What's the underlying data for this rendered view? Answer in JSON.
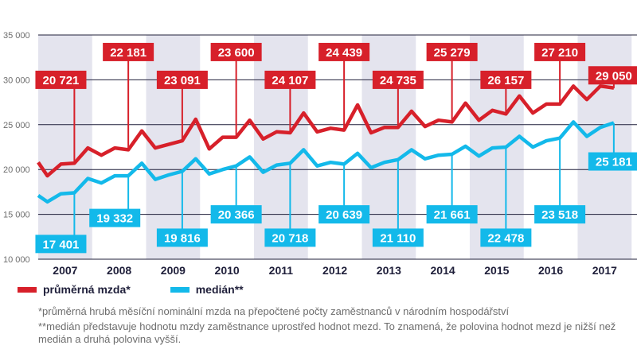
{
  "colors": {
    "avg": "#d7202a",
    "median": "#13b9ea",
    "band": "#e4e4ee",
    "grid": "#1f1f3a"
  },
  "chart_data": {
    "type": "line",
    "title": "",
    "xlabel": "",
    "ylabel": "",
    "ylim": [
      10000,
      35000
    ],
    "y_ticks": [
      10000,
      15000,
      20000,
      25000,
      30000,
      35000
    ],
    "y_tick_labels": [
      "10 000",
      "15 000",
      "20 000",
      "25 000",
      "30 000",
      "35 000"
    ],
    "years": [
      "2007",
      "2008",
      "2009",
      "2010",
      "2011",
      "2012",
      "2013",
      "2014",
      "2015",
      "2016",
      "2017"
    ],
    "x_range": [
      2006.7,
      2017.8
    ],
    "series": [
      {
        "name": "průměrná mzda*",
        "color_key": "avg",
        "points": [
          [
            2006.7,
            20800
          ],
          [
            2006.87,
            19300
          ],
          [
            2007.12,
            20600
          ],
          [
            2007.37,
            20700
          ],
          [
            2007.62,
            22400
          ],
          [
            2007.87,
            21600
          ],
          [
            2008.12,
            22400
          ],
          [
            2008.37,
            22200
          ],
          [
            2008.62,
            24300
          ],
          [
            2008.87,
            22400
          ],
          [
            2009.12,
            22800
          ],
          [
            2009.37,
            23200
          ],
          [
            2009.62,
            25600
          ],
          [
            2009.87,
            22300
          ],
          [
            2010.12,
            23600
          ],
          [
            2010.37,
            23600
          ],
          [
            2010.62,
            25500
          ],
          [
            2010.87,
            23400
          ],
          [
            2011.12,
            24200
          ],
          [
            2011.37,
            24100
          ],
          [
            2011.62,
            26300
          ],
          [
            2011.87,
            24200
          ],
          [
            2012.12,
            24600
          ],
          [
            2012.37,
            24400
          ],
          [
            2012.62,
            27200
          ],
          [
            2012.87,
            24100
          ],
          [
            2013.12,
            24700
          ],
          [
            2013.37,
            24700
          ],
          [
            2013.62,
            26500
          ],
          [
            2013.87,
            24800
          ],
          [
            2014.12,
            25500
          ],
          [
            2014.37,
            25300
          ],
          [
            2014.62,
            27400
          ],
          [
            2014.87,
            25500
          ],
          [
            2015.12,
            26600
          ],
          [
            2015.37,
            26200
          ],
          [
            2015.62,
            28200
          ],
          [
            2015.87,
            26300
          ],
          [
            2016.12,
            27300
          ],
          [
            2016.37,
            27300
          ],
          [
            2016.62,
            29300
          ],
          [
            2016.87,
            27800
          ],
          [
            2017.12,
            29300
          ],
          [
            2017.37,
            29100
          ]
        ],
        "labels": [
          {
            "text": "20 721",
            "x": 2007.37,
            "y": 20721,
            "tx": 2007.12,
            "ty": 30000
          },
          {
            "text": "22 181",
            "x": 2008.37,
            "y": 22181,
            "tx": 2008.37,
            "ty": 33100
          },
          {
            "text": "23 091",
            "x": 2009.37,
            "y": 23091,
            "tx": 2009.37,
            "ty": 30000
          },
          {
            "text": "23 600",
            "x": 2010.37,
            "y": 23600,
            "tx": 2010.37,
            "ty": 33100
          },
          {
            "text": "24 107",
            "x": 2011.37,
            "y": 24107,
            "tx": 2011.37,
            "ty": 30000
          },
          {
            "text": "24 439",
            "x": 2012.37,
            "y": 24439,
            "tx": 2012.37,
            "ty": 33100
          },
          {
            "text": "24 735",
            "x": 2013.37,
            "y": 24735,
            "tx": 2013.37,
            "ty": 30000
          },
          {
            "text": "25 279",
            "x": 2014.37,
            "y": 25279,
            "tx": 2014.37,
            "ty": 33100
          },
          {
            "text": "26 157",
            "x": 2015.37,
            "y": 26157,
            "tx": 2015.37,
            "ty": 30000
          },
          {
            "text": "27 210",
            "x": 2016.37,
            "y": 27210,
            "tx": 2016.37,
            "ty": 33100
          },
          {
            "text": "29 050",
            "x": 2017.37,
            "y": 29050,
            "tx": 2017.37,
            "ty": 30500
          }
        ]
      },
      {
        "name": "medián**",
        "color_key": "median",
        "points": [
          [
            2006.7,
            17100
          ],
          [
            2006.87,
            16400
          ],
          [
            2007.12,
            17300
          ],
          [
            2007.37,
            17400
          ],
          [
            2007.62,
            19000
          ],
          [
            2007.87,
            18500
          ],
          [
            2008.12,
            19300
          ],
          [
            2008.37,
            19300
          ],
          [
            2008.62,
            20700
          ],
          [
            2008.87,
            18900
          ],
          [
            2009.12,
            19400
          ],
          [
            2009.37,
            19800
          ],
          [
            2009.62,
            21200
          ],
          [
            2009.87,
            19500
          ],
          [
            2010.12,
            20000
          ],
          [
            2010.37,
            20400
          ],
          [
            2010.62,
            21400
          ],
          [
            2010.87,
            19700
          ],
          [
            2011.12,
            20500
          ],
          [
            2011.37,
            20700
          ],
          [
            2011.62,
            22200
          ],
          [
            2011.87,
            20400
          ],
          [
            2012.12,
            20800
          ],
          [
            2012.37,
            20600
          ],
          [
            2012.62,
            21800
          ],
          [
            2012.87,
            20200
          ],
          [
            2013.12,
            20800
          ],
          [
            2013.37,
            21100
          ],
          [
            2013.62,
            22200
          ],
          [
            2013.87,
            21200
          ],
          [
            2014.12,
            21600
          ],
          [
            2014.37,
            21700
          ],
          [
            2014.62,
            22600
          ],
          [
            2014.87,
            21500
          ],
          [
            2015.12,
            22400
          ],
          [
            2015.37,
            22500
          ],
          [
            2015.62,
            23700
          ],
          [
            2015.87,
            22500
          ],
          [
            2016.12,
            23200
          ],
          [
            2016.37,
            23500
          ],
          [
            2016.62,
            25300
          ],
          [
            2016.87,
            23700
          ],
          [
            2017.12,
            24700
          ],
          [
            2017.37,
            25200
          ]
        ],
        "labels": [
          {
            "text": "17 401",
            "x": 2007.37,
            "y": 17401,
            "tx": 2007.12,
            "ty": 11700
          },
          {
            "text": "19 332",
            "x": 2008.37,
            "y": 19332,
            "tx": 2008.12,
            "ty": 14600
          },
          {
            "text": "19 816",
            "x": 2009.37,
            "y": 19816,
            "tx": 2009.37,
            "ty": 12400
          },
          {
            "text": "20 366",
            "x": 2010.37,
            "y": 20366,
            "tx": 2010.37,
            "ty": 15000
          },
          {
            "text": "20 718",
            "x": 2011.37,
            "y": 20718,
            "tx": 2011.37,
            "ty": 12400
          },
          {
            "text": "20 639",
            "x": 2012.37,
            "y": 20639,
            "tx": 2012.37,
            "ty": 15000
          },
          {
            "text": "21 110",
            "x": 2013.37,
            "y": 21110,
            "tx": 2013.37,
            "ty": 12400
          },
          {
            "text": "21 661",
            "x": 2014.37,
            "y": 21661,
            "tx": 2014.37,
            "ty": 15000
          },
          {
            "text": "22 478",
            "x": 2015.37,
            "y": 22478,
            "tx": 2015.37,
            "ty": 12400
          },
          {
            "text": "23 518",
            "x": 2016.37,
            "y": 23518,
            "tx": 2016.37,
            "ty": 15000
          },
          {
            "text": "25 181",
            "x": 2017.37,
            "y": 25181,
            "tx": 2017.37,
            "ty": 20900
          }
        ]
      }
    ]
  },
  "legend": {
    "avg_label": "průměrná mzda*",
    "median_label": "medián**"
  },
  "notes": {
    "note1": "*průměrná hrubá měsíční nominální mzda na přepočtené počty zaměstnanců v národním hospodářství",
    "note2": "**medián představuje hodnotu mzdy zaměstnance uprostřed hodnot mezd. To znamená, že polovina hodnot mezd je nižší než medián a druhá polovina vyšší."
  }
}
